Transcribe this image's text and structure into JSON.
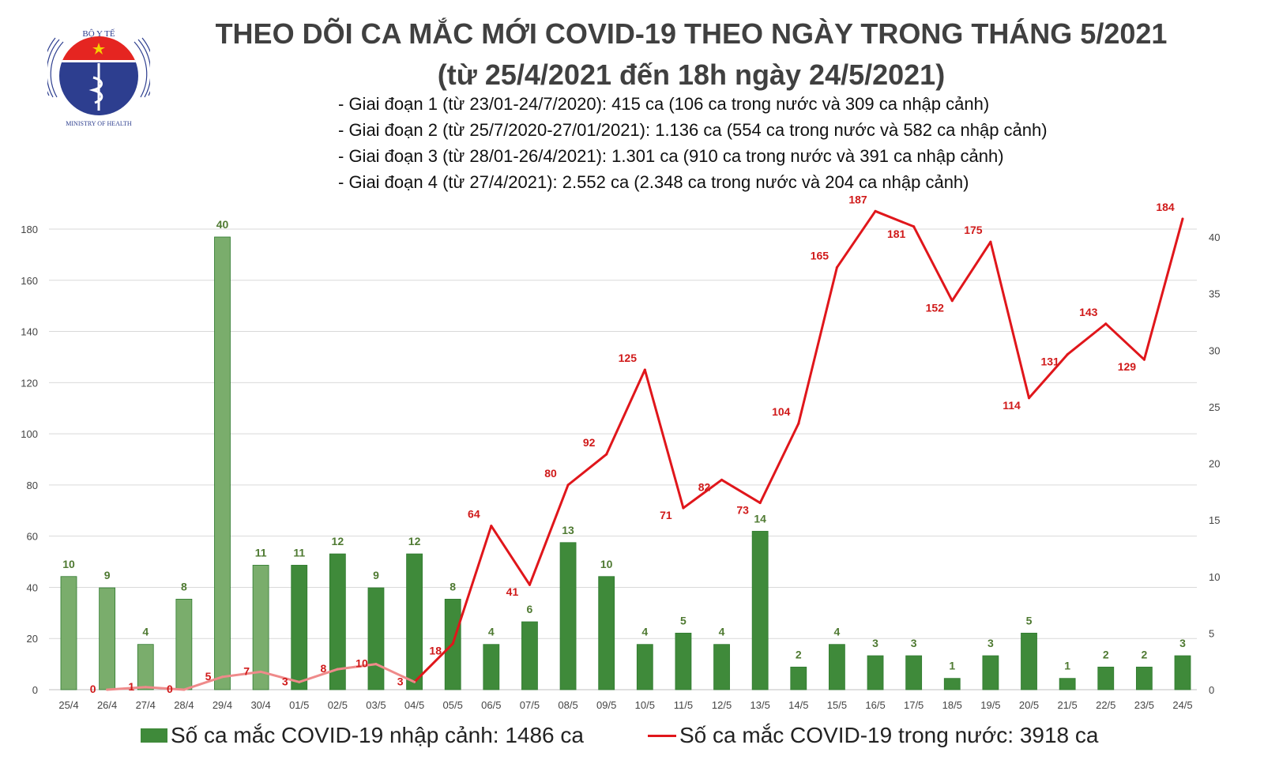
{
  "logo": {
    "text_top": "BỘ Y TẾ",
    "text_bottom": "MINISTRY OF HEALTH"
  },
  "header": {
    "title": "THEO DÕI CA MẮC MỚI COVID-19 THEO NGÀY TRONG THÁNG 5/2021",
    "subtitle": "(từ 25/4/2021 đến 18h ngày 24/5/2021)",
    "notes": [
      "- Giai đoạn 1 (từ 23/01-24/7/2020): 415 ca (106 ca trong nước và 309 ca nhập cảnh)",
      "- Giai đoạn 2 (từ 25/7/2020-27/01/2021): 1.136 ca (554 ca trong nước và 582 ca nhập cảnh)",
      "- Giai đoạn 3 (từ 28/01-26/4/2021): 1.301 ca (910 ca trong nước và 391 ca nhập cảnh)",
      "- Giai đoạn 4 (từ 27/4/2021): 2.552 ca (2.348 ca trong nước và 204 ca nhập cảnh)"
    ]
  },
  "chart_data": {
    "type": "bar+line",
    "categories": [
      "25/4",
      "26/4",
      "27/4",
      "28/4",
      "29/4",
      "30/4",
      "01/5",
      "02/5",
      "03/5",
      "04/5",
      "05/5",
      "06/5",
      "07/5",
      "08/5",
      "09/5",
      "10/5",
      "11/5",
      "12/5",
      "13/5",
      "14/5",
      "15/5",
      "16/5",
      "17/5",
      "18/5",
      "19/5",
      "20/5",
      "21/5",
      "22/5",
      "23/5",
      "24/5"
    ],
    "series": [
      {
        "name": "Số ca mắc COVID-19 nhập cảnh: 1486 ca",
        "type": "bar",
        "axis": "right",
        "color": "#3f8a3a",
        "faded_color": "#7aad6c",
        "values": [
          10,
          9,
          4,
          8,
          40,
          11,
          11,
          12,
          9,
          12,
          8,
          4,
          6,
          13,
          10,
          4,
          5,
          4,
          14,
          2,
          4,
          3,
          3,
          1,
          3,
          5,
          1,
          2,
          2,
          3
        ]
      },
      {
        "name": "Số ca mắc COVID-19 trong nước: 3918 ca",
        "type": "line",
        "axis": "left",
        "color": "#e0161b",
        "faded_color": "#ef8a8a",
        "values": [
          null,
          0,
          1,
          0,
          5,
          7,
          3,
          8,
          10,
          3,
          18,
          64,
          41,
          80,
          92,
          125,
          71,
          82,
          73,
          104,
          165,
          187,
          181,
          152,
          175,
          114,
          131,
          143,
          129,
          184
        ]
      }
    ],
    "left_axis": {
      "ylim": [
        0,
        180
      ],
      "ticks": [
        0,
        20,
        40,
        60,
        80,
        100,
        120,
        140,
        160,
        180
      ]
    },
    "right_axis": {
      "ylim": [
        0,
        40
      ],
      "ticks": [
        0,
        5,
        10,
        15,
        20,
        25,
        30,
        35,
        40
      ]
    },
    "grid": true,
    "legend": "bottom"
  }
}
